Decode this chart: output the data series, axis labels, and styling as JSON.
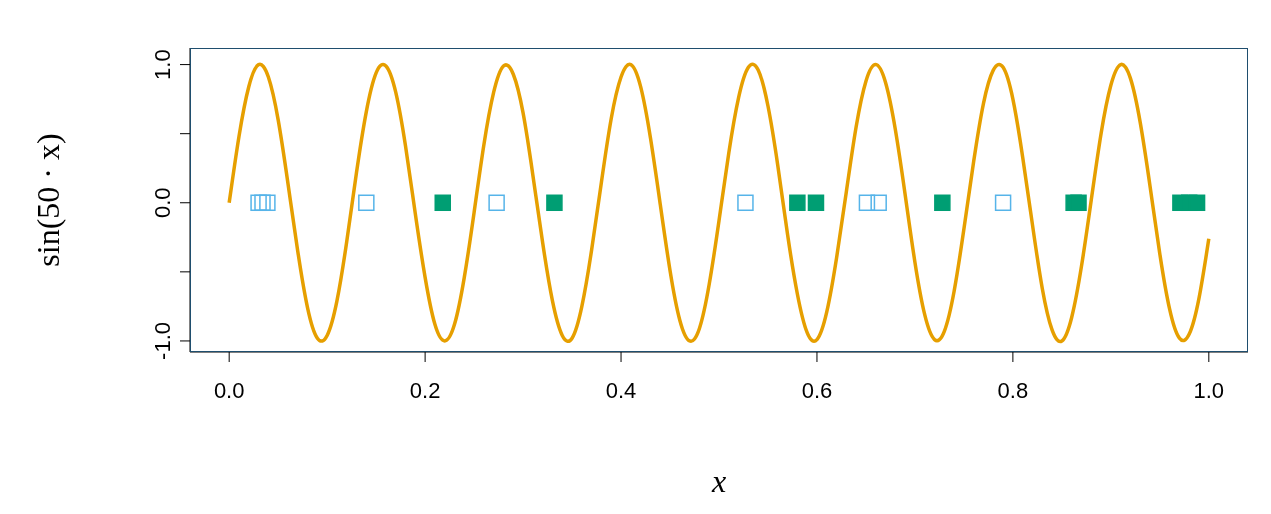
{
  "chart_data": {
    "type": "line",
    "xlabel": "x",
    "ylabel": "sin(50 · x)",
    "xlim": [
      -0.04,
      1.04
    ],
    "ylim": [
      -1.08,
      1.12
    ],
    "xticks": [
      {
        "value": 0,
        "label": "0.0"
      },
      {
        "value": 0.2,
        "label": "0.2"
      },
      {
        "value": 0.4,
        "label": "0.4"
      },
      {
        "value": 0.6,
        "label": "0.6"
      },
      {
        "value": 0.8,
        "label": "0.8"
      },
      {
        "value": 1,
        "label": "1.0"
      }
    ],
    "yticks": [
      {
        "value": -1,
        "label": "-1.0"
      },
      {
        "value": -0.5,
        "label": null
      },
      {
        "value": 0,
        "label": "0.0"
      },
      {
        "value": 0.5,
        "label": null
      },
      {
        "value": 1,
        "label": "1.0"
      }
    ],
    "grid": false,
    "series": [
      {
        "color": "#e69f00",
        "marker": "none",
        "x": [
          0,
          0.01,
          0.02,
          0.03,
          0.04,
          0.05,
          0.06,
          0.07,
          0.08,
          0.09,
          0.1,
          0.11,
          0.12,
          0.13,
          0.14,
          0.15,
          0.16,
          0.17,
          0.18,
          0.19,
          0.2,
          0.21,
          0.22,
          0.23,
          0.24,
          0.25,
          0.26,
          0.27,
          0.28,
          0.29,
          0.3,
          0.31,
          0.32,
          0.33,
          0.34,
          0.35,
          0.36,
          0.37,
          0.38,
          0.39,
          0.4,
          0.41,
          0.42,
          0.43,
          0.44,
          0.45,
          0.46,
          0.47,
          0.48,
          0.49,
          0.5,
          0.51,
          0.52,
          0.53,
          0.54,
          0.55,
          0.56,
          0.57,
          0.58,
          0.59,
          0.6,
          0.61,
          0.62,
          0.63,
          0.64,
          0.65,
          0.66,
          0.67,
          0.68,
          0.69,
          0.7,
          0.71,
          0.72,
          0.73,
          0.74,
          0.75,
          0.76,
          0.77,
          0.78,
          0.79,
          0.8,
          0.81,
          0.82,
          0.83,
          0.84,
          0.85,
          0.86,
          0.87,
          0.88,
          0.89,
          0.9,
          0.91,
          0.92,
          0.93,
          0.94,
          0.95,
          0.96,
          0.97,
          0.98,
          0.99,
          1
        ],
        "values": [
          0,
          0.48,
          0.84,
          1.0,
          0.91,
          0.6,
          0.14,
          -0.35,
          -0.76,
          -0.98,
          -0.96,
          -0.71,
          -0.28,
          0.22,
          0.66,
          0.94,
          0.99,
          0.8,
          0.41,
          -0.08,
          -0.54,
          -0.88,
          -1.0,
          -0.88,
          -0.54,
          -0.07,
          0.42,
          0.8,
          0.99,
          0.93,
          0.65,
          0.2,
          -0.29,
          -0.71,
          -0.96,
          -0.98,
          -0.75,
          -0.34,
          0.15,
          0.61,
          0.91,
          1.0,
          0.84,
          0.47,
          -0.01,
          -0.49,
          -0.85,
          -1.0,
          -0.91,
          -0.59,
          -0.13,
          0.36,
          0.76,
          0.98,
          0.96,
          0.7,
          0.27,
          -0.23,
          -0.66,
          -0.94,
          -0.99,
          -0.79,
          -0.4,
          0.08,
          0.55,
          0.88,
          1.0,
          0.87,
          0.53,
          0.06,
          -0.43,
          -0.81,
          -0.99,
          -0.93,
          -0.64,
          -0.19,
          0.3,
          0.72,
          0.96,
          0.98,
          0.75,
          0.33,
          -0.16,
          -0.62,
          -0.92,
          -1.0,
          -0.83,
          -0.46,
          0.02,
          0.5,
          0.85,
          1.0,
          0.9,
          0.58,
          0.12,
          -0.37,
          -0.77,
          -0.98,
          -0.95,
          -0.69,
          -0.26
        ]
      },
      {
        "type": "scatter",
        "marker": "square",
        "color": "#56b4e9",
        "x": [
          0.03,
          0.034,
          0.039,
          0.14,
          0.273,
          0.527,
          0.651,
          0.663,
          0.79
        ],
        "values": [
          0,
          0,
          0,
          0,
          0,
          0,
          0,
          0,
          0
        ]
      },
      {
        "type": "scatter",
        "marker": "square",
        "color": "#009e73",
        "x": [
          0.218,
          0.332,
          0.58,
          0.599,
          0.728,
          0.862,
          0.867,
          0.971,
          0.98,
          0.988
        ],
        "values": [
          0,
          0,
          0,
          0,
          0,
          0,
          0,
          0,
          0,
          0
        ]
      }
    ]
  }
}
